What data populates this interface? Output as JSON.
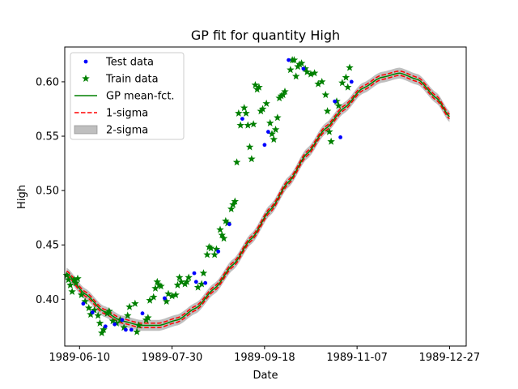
{
  "chart_data": {
    "type": "scatter",
    "title": "GP fit for quantity High",
    "xlabel": "Date",
    "ylabel": "High",
    "x_tick_labels": [
      "1989-06-10",
      "1989-07-30",
      "1989-09-18",
      "1989-11-07",
      "1989-12-27"
    ],
    "x_tick_dates": [
      "1989-06-10",
      "1989-07-30",
      "1989-09-18",
      "1989-11-07",
      "1989-12-27"
    ],
    "xlim": [
      "1989-06-02",
      "1989-01-05"
    ],
    "y_tick_labels": [
      "0.40",
      "0.45",
      "0.50",
      "0.55",
      "0.60"
    ],
    "y_tick_values": [
      0.4,
      0.45,
      0.5,
      0.55,
      0.6
    ],
    "ylim": [
      0.357,
      0.632
    ],
    "grid": false,
    "legend_position": "upper-left",
    "legend": {
      "test": "Test data",
      "train": "Train data",
      "mean": "GP mean-fct.",
      "one_sigma": "1-sigma",
      "two_sigma": "2-sigma"
    },
    "colors": {
      "test": "#0000ff",
      "train": "#008000",
      "mean": "#008000",
      "one_sigma": "#ff0000",
      "two_sigma": "#808080"
    },
    "gp": {
      "dates": [
        "1989-06-03",
        "1989-06-13",
        "1989-06-23",
        "1989-07-03",
        "1989-07-13",
        "1989-07-23",
        "1989-08-02",
        "1989-08-12",
        "1989-08-22",
        "1989-09-01",
        "1989-09-11",
        "1989-09-21",
        "1989-10-01",
        "1989-10-11",
        "1989-10-21",
        "1989-10-31",
        "1989-11-10",
        "1989-11-20",
        "1989-11-30",
        "1989-12-10",
        "1989-12-20",
        "1989-12-27"
      ],
      "mean": [
        0.424,
        0.405,
        0.389,
        0.38,
        0.376,
        0.376,
        0.381,
        0.392,
        0.41,
        0.432,
        0.456,
        0.482,
        0.508,
        0.534,
        0.557,
        0.576,
        0.594,
        0.604,
        0.608,
        0.602,
        0.585,
        0.568
      ],
      "one_sigma": 0.002,
      "two_sigma": 0.005
    },
    "train": [
      {
        "x": "1989-06-03",
        "y": 0.422
      },
      {
        "x": "1989-06-04",
        "y": 0.418
      },
      {
        "x": "1989-06-05",
        "y": 0.413
      },
      {
        "x": "1989-06-06",
        "y": 0.407
      },
      {
        "x": "1989-06-07",
        "y": 0.418
      },
      {
        "x": "1989-06-08",
        "y": 0.415
      },
      {
        "x": "1989-06-09",
        "y": 0.419
      },
      {
        "x": "1989-06-11",
        "y": 0.404
      },
      {
        "x": "1989-06-13",
        "y": 0.398
      },
      {
        "x": "1989-06-15",
        "y": 0.392
      },
      {
        "x": "1989-06-16",
        "y": 0.386
      },
      {
        "x": "1989-06-18",
        "y": 0.39
      },
      {
        "x": "1989-06-20",
        "y": 0.385
      },
      {
        "x": "1989-06-21",
        "y": 0.378
      },
      {
        "x": "1989-06-22",
        "y": 0.369
      },
      {
        "x": "1989-06-23",
        "y": 0.372
      },
      {
        "x": "1989-06-25",
        "y": 0.387
      },
      {
        "x": "1989-06-26",
        "y": 0.389
      },
      {
        "x": "1989-06-28",
        "y": 0.38
      },
      {
        "x": "1989-06-30",
        "y": 0.378
      },
      {
        "x": "1989-07-02",
        "y": 0.381
      },
      {
        "x": "1989-07-04",
        "y": 0.374
      },
      {
        "x": "1989-07-06",
        "y": 0.385
      },
      {
        "x": "1989-07-07",
        "y": 0.393
      },
      {
        "x": "1989-07-10",
        "y": 0.396
      },
      {
        "x": "1989-07-11",
        "y": 0.37
      },
      {
        "x": "1989-07-12",
        "y": 0.376
      },
      {
        "x": "1989-07-16",
        "y": 0.381
      },
      {
        "x": "1989-07-17",
        "y": 0.383
      },
      {
        "x": "1989-07-18",
        "y": 0.399
      },
      {
        "x": "1989-07-20",
        "y": 0.402
      },
      {
        "x": "1989-07-21",
        "y": 0.41
      },
      {
        "x": "1989-07-22",
        "y": 0.416
      },
      {
        "x": "1989-07-23",
        "y": 0.413
      },
      {
        "x": "1989-07-24",
        "y": 0.412
      },
      {
        "x": "1989-07-27",
        "y": 0.398
      },
      {
        "x": "1989-07-28",
        "y": 0.405
      },
      {
        "x": "1989-07-30",
        "y": 0.403
      },
      {
        "x": "1989-08-01",
        "y": 0.404
      },
      {
        "x": "1989-08-02",
        "y": 0.413
      },
      {
        "x": "1989-08-03",
        "y": 0.42
      },
      {
        "x": "1989-08-04",
        "y": 0.416
      },
      {
        "x": "1989-08-06",
        "y": 0.414
      },
      {
        "x": "1989-08-07",
        "y": 0.416
      },
      {
        "x": "1989-08-08",
        "y": 0.42
      },
      {
        "x": "1989-08-13",
        "y": 0.411
      },
      {
        "x": "1989-08-15",
        "y": 0.414
      },
      {
        "x": "1989-08-16",
        "y": 0.424
      },
      {
        "x": "1989-08-18",
        "y": 0.441
      },
      {
        "x": "1989-08-19",
        "y": 0.448
      },
      {
        "x": "1989-08-20",
        "y": 0.447
      },
      {
        "x": "1989-08-22",
        "y": 0.441
      },
      {
        "x": "1989-08-23",
        "y": 0.446
      },
      {
        "x": "1989-08-25",
        "y": 0.464
      },
      {
        "x": "1989-08-26",
        "y": 0.459
      },
      {
        "x": "1989-08-27",
        "y": 0.456
      },
      {
        "x": "1989-08-28",
        "y": 0.472
      },
      {
        "x": "1989-08-29",
        "y": 0.47
      },
      {
        "x": "1989-08-31",
        "y": 0.483
      },
      {
        "x": "1989-09-01",
        "y": 0.487
      },
      {
        "x": "1989-09-02",
        "y": 0.49
      },
      {
        "x": "1989-09-03",
        "y": 0.526
      },
      {
        "x": "1989-09-04",
        "y": 0.571
      },
      {
        "x": "1989-09-05",
        "y": 0.56
      },
      {
        "x": "1989-09-07",
        "y": 0.576
      },
      {
        "x": "1989-09-08",
        "y": 0.571
      },
      {
        "x": "1989-09-09",
        "y": 0.56
      },
      {
        "x": "1989-09-10",
        "y": 0.54
      },
      {
        "x": "1989-09-11",
        "y": 0.529
      },
      {
        "x": "1989-09-12",
        "y": 0.561
      },
      {
        "x": "1989-09-13",
        "y": 0.597
      },
      {
        "x": "1989-09-14",
        "y": 0.593
      },
      {
        "x": "1989-09-15",
        "y": 0.595
      },
      {
        "x": "1989-09-16",
        "y": 0.573
      },
      {
        "x": "1989-09-17",
        "y": 0.575
      },
      {
        "x": "1989-09-19",
        "y": 0.58
      },
      {
        "x": "1989-09-21",
        "y": 0.562
      },
      {
        "x": "1989-09-22",
        "y": 0.552
      },
      {
        "x": "1989-09-23",
        "y": 0.547
      },
      {
        "x": "1989-09-24",
        "y": 0.556
      },
      {
        "x": "1989-09-25",
        "y": 0.567
      },
      {
        "x": "1989-09-26",
        "y": 0.585
      },
      {
        "x": "1989-09-27",
        "y": 0.587
      },
      {
        "x": "1989-09-28",
        "y": 0.588
      },
      {
        "x": "1989-09-29",
        "y": 0.591
      },
      {
        "x": "1989-10-02",
        "y": 0.611
      },
      {
        "x": "1989-10-03",
        "y": 0.62
      },
      {
        "x": "1989-10-04",
        "y": 0.62
      },
      {
        "x": "1989-10-05",
        "y": 0.605
      },
      {
        "x": "1989-10-06",
        "y": 0.614
      },
      {
        "x": "1989-10-07",
        "y": 0.616
      },
      {
        "x": "1989-10-08",
        "y": 0.617
      },
      {
        "x": "1989-10-10",
        "y": 0.612
      },
      {
        "x": "1989-10-11",
        "y": 0.609
      },
      {
        "x": "1989-10-13",
        "y": 0.607
      },
      {
        "x": "1989-10-15",
        "y": 0.608
      },
      {
        "x": "1989-10-17",
        "y": 0.598
      },
      {
        "x": "1989-10-19",
        "y": 0.6
      },
      {
        "x": "1989-10-21",
        "y": 0.588
      },
      {
        "x": "1989-10-22",
        "y": 0.573
      },
      {
        "x": "1989-10-23",
        "y": 0.554
      },
      {
        "x": "1989-10-24",
        "y": 0.545
      },
      {
        "x": "1989-10-27",
        "y": 0.582
      },
      {
        "x": "1989-10-28",
        "y": 0.578
      },
      {
        "x": "1989-10-30",
        "y": 0.599
      },
      {
        "x": "1989-11-01",
        "y": 0.604
      },
      {
        "x": "1989-11-02",
        "y": 0.595
      },
      {
        "x": "1989-11-03",
        "y": 0.613
      }
    ],
    "test": [
      {
        "x": "1989-06-12",
        "y": 0.396
      },
      {
        "x": "1989-06-17",
        "y": 0.388
      },
      {
        "x": "1989-06-24",
        "y": 0.375
      },
      {
        "x": "1989-06-29",
        "y": 0.377
      },
      {
        "x": "1989-07-03",
        "y": 0.381
      },
      {
        "x": "1989-07-05",
        "y": 0.372
      },
      {
        "x": "1989-07-08",
        "y": 0.372
      },
      {
        "x": "1989-07-14",
        "y": 0.387
      },
      {
        "x": "1989-07-26",
        "y": 0.401
      },
      {
        "x": "1989-08-12",
        "y": 0.416
      },
      {
        "x": "1989-08-11",
        "y": 0.424
      },
      {
        "x": "1989-08-17",
        "y": 0.415
      },
      {
        "x": "1989-08-24",
        "y": 0.444
      },
      {
        "x": "1989-08-30",
        "y": 0.469
      },
      {
        "x": "1989-09-06",
        "y": 0.566
      },
      {
        "x": "1989-09-18",
        "y": 0.542
      },
      {
        "x": "1989-09-20",
        "y": 0.554
      },
      {
        "x": "1989-10-01",
        "y": 0.62
      },
      {
        "x": "1989-10-09",
        "y": 0.612
      },
      {
        "x": "1989-10-26",
        "y": 0.582
      },
      {
        "x": "1989-10-29",
        "y": 0.549
      },
      {
        "x": "1989-11-04",
        "y": 0.6
      }
    ]
  }
}
